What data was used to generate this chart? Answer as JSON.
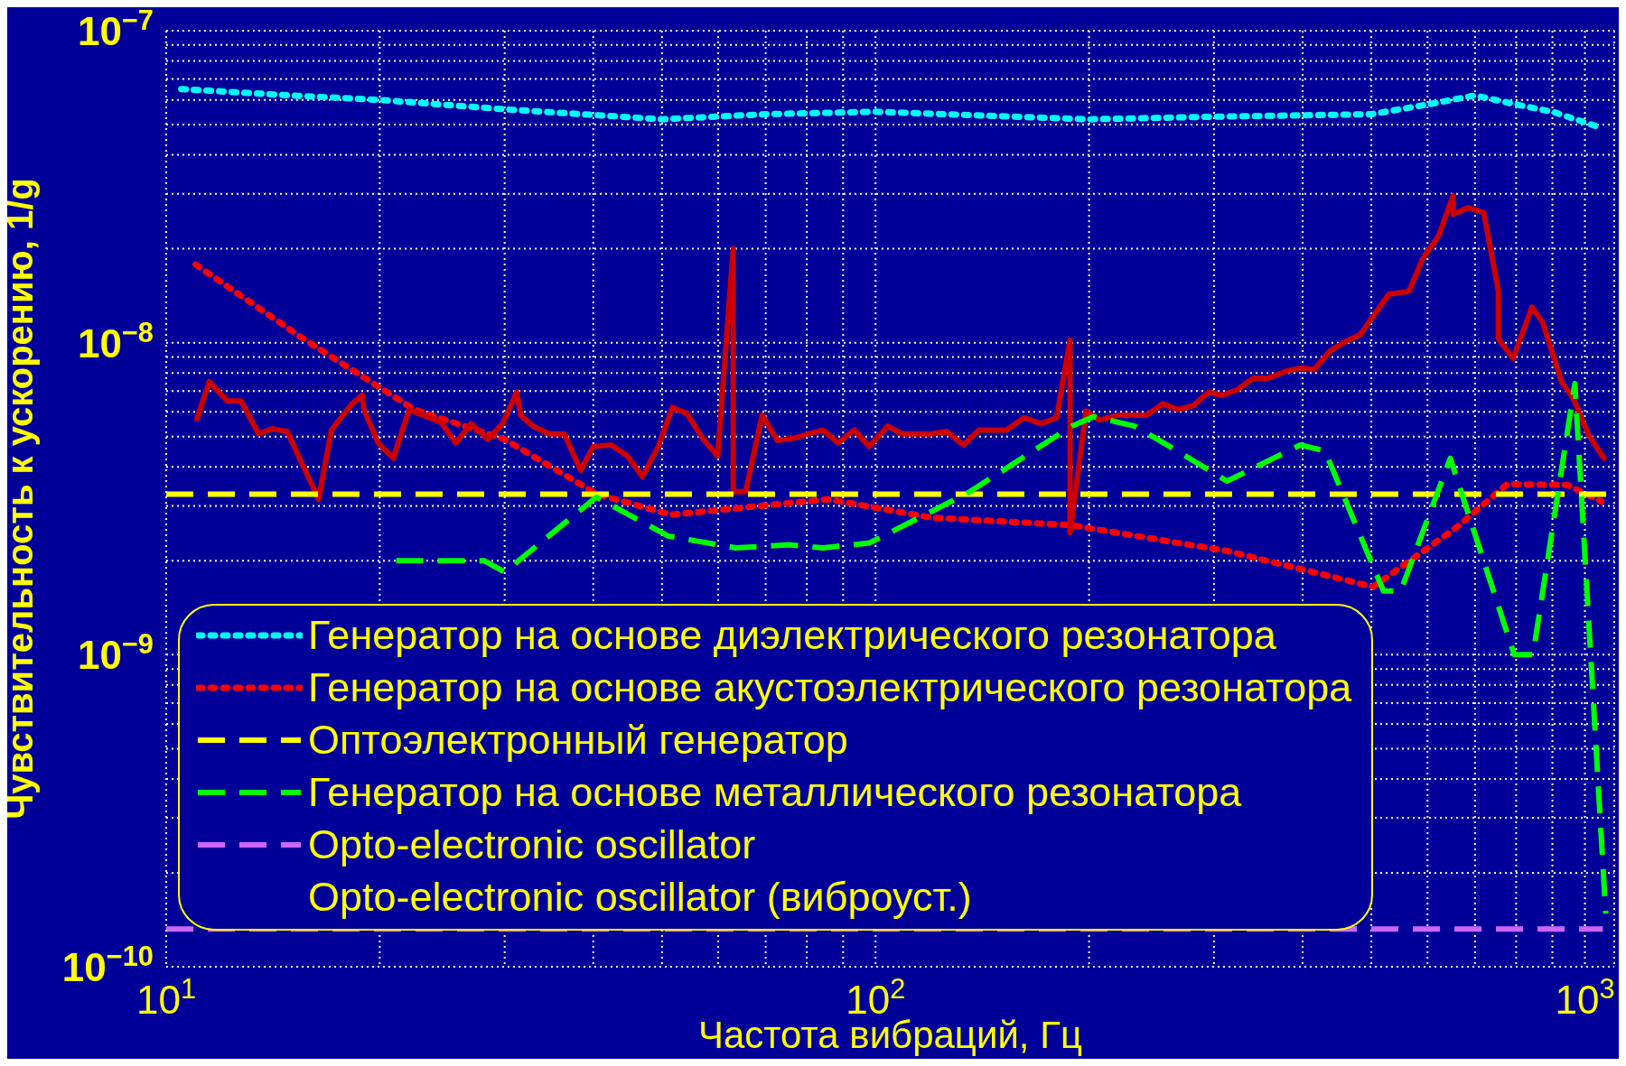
{
  "chart_data": {
    "type": "line",
    "xlabel": "Частота вибраций, Гц",
    "ylabel": "Чувствительность к ускорению, 1/g",
    "log": "xy",
    "grid": true,
    "legend": "bottom",
    "xlim": [
      10,
      1100
    ],
    "xticks": [
      {
        "value": 10,
        "label": "10$^{1}$"
      },
      {
        "value": 20,
        "label": null
      },
      {
        "value": 30,
        "label": null
      },
      {
        "value": 40,
        "label": null
      },
      {
        "value": 50,
        "label": null
      },
      {
        "value": 60,
        "label": null
      },
      {
        "value": 70,
        "label": null
      },
      {
        "value": 80,
        "label": null
      },
      {
        "value": 90,
        "label": null
      },
      {
        "value": 100,
        "label": "10$^{2}$"
      },
      {
        "value": 200,
        "label": null
      },
      {
        "value": 300,
        "label": null
      },
      {
        "value": 400,
        "label": null
      },
      {
        "value": 500,
        "label": null
      },
      {
        "value": 600,
        "label": null
      },
      {
        "value": 700,
        "label": null
      },
      {
        "value": 800,
        "label": null
      },
      {
        "value": 900,
        "label": null
      },
      {
        "value": 1000,
        "label": "10$^{3}$"
      }
    ],
    "ylim": [
      1e-10,
      1e-07
    ],
    "yticks": [
      {
        "value": 1e-10,
        "label": "10$^{−10}$"
      },
      {
        "value": 2e-10,
        "label": null
      },
      {
        "value": 3e-10,
        "label": null
      },
      {
        "value": 4e-10,
        "label": null
      },
      {
        "value": 5e-10,
        "label": null
      },
      {
        "value": 6e-10,
        "label": null
      },
      {
        "value": 7e-10,
        "label": null
      },
      {
        "value": 8e-10,
        "label": null
      },
      {
        "value": 9e-10,
        "label": null
      },
      {
        "value": 1e-09,
        "label": "10$^{−9}$"
      },
      {
        "value": 2e-09,
        "label": null
      },
      {
        "value": 3e-09,
        "label": null
      },
      {
        "value": 4e-09,
        "label": null
      },
      {
        "value": 5e-09,
        "label": null
      },
      {
        "value": 6e-09,
        "label": null
      },
      {
        "value": 7e-09,
        "label": null
      },
      {
        "value": 8e-09,
        "label": null
      },
      {
        "value": 9e-09,
        "label": null
      },
      {
        "value": 1e-08,
        "label": "10$^{−8}$"
      },
      {
        "value": 2e-08,
        "label": null
      },
      {
        "value": 3e-08,
        "label": null
      },
      {
        "value": 4e-08,
        "label": null
      },
      {
        "value": 5e-08,
        "label": null
      },
      {
        "value": 6e-08,
        "label": null
      },
      {
        "value": 7e-08,
        "label": null
      },
      {
        "value": 8e-08,
        "label": null
      },
      {
        "value": 9e-08,
        "label": null
      },
      {
        "value": 1e-07,
        "label": "10$^{−7}$"
      }
    ],
    "series": [
      {
        "name": "Генератор на основе диэлектрического резонатора",
        "color": "#00ffff",
        "line_style": "dotted",
        "x": [
          10.5,
          15,
          20,
          30,
          50,
          70,
          100,
          200,
          300,
          500,
          600,
          700,
          800,
          900,
          1050
        ],
        "values": [
          6.5e-08,
          6.2e-08,
          6e-08,
          5.6e-08,
          5.2e-08,
          5.4e-08,
          5.5e-08,
          5.2e-08,
          5.3e-08,
          5.4e-08,
          5.8e-08,
          6.2e-08,
          5.8e-08,
          5.5e-08,
          4.9e-08
        ]
      },
      {
        "name": "Генератор на основе акустоэлектрического резонатора",
        "color": "#ff0000",
        "line_style": "dotted",
        "x": [
          11,
          15.7,
          22.4,
          30,
          40.5,
          51.5,
          85.7,
          120,
          189,
          313,
          503,
          658,
          777,
          944,
          1055
        ],
        "values": [
          1.78e-08,
          1.02e-08,
          6.1e-09,
          4.9e-09,
          3.27e-09,
          2.81e-09,
          3.15e-09,
          2.75e-09,
          2.6e-09,
          2.15e-09,
          1.65e-09,
          2.55e-09,
          3.52e-09,
          3.5e-09,
          3.1e-09
        ]
      },
      {
        "name": null,
        "color": "#cc0000",
        "line_style": "solid",
        "x": [
          11.05,
          11.5,
          12.2,
          12.75,
          13.5,
          14.1,
          14.8,
          16.4,
          17.1,
          18.2,
          18.9,
          19.0,
          19.9,
          20.9,
          22.0,
          24.4,
          25.6,
          26.9,
          28.4,
          29.8,
          31.2,
          31.6,
          32.9,
          34.7,
          36.4,
          38.4,
          40.0,
          42.4,
          44.7,
          46.9,
          49.4,
          51.7,
          54.2,
          57.0,
          59.9,
          63.0,
          63.0,
          65.6,
          69.2,
          72.7,
          76.9,
          84.3,
          88.6,
          93.3,
          98.0,
          104,
          109,
          120,
          126,
          133,
          140,
          153,
          162,
          171,
          180,
          188,
          188,
          198,
          207,
          220,
          241,
          254,
          267,
          281,
          295,
          308,
          324,
          341,
          358,
          379,
          398,
          415,
          437,
          460,
          482,
          529,
          565,
          590,
          622,
          652,
          652,
          685,
          720,
          755,
          755,
          792,
          842,
          872,
          927,
          964,
          1013,
          1064
        ],
        "values": [
          5.7e-09,
          7.5e-09,
          6.5e-09,
          6.5e-09,
          5.1e-09,
          5.3e-09,
          5.2e-09,
          3.15e-09,
          5.25e-09,
          6.3e-09,
          6.8e-09,
          6.1e-09,
          4.77e-09,
          4.26e-09,
          6.1e-09,
          5.55e-09,
          4.77e-09,
          5.5e-09,
          4.9e-09,
          5.5e-09,
          6.95e-09,
          5.86e-09,
          5.4e-09,
          5.1e-09,
          5.1e-09,
          3.9e-09,
          4.65e-09,
          4.7e-09,
          4.33e-09,
          3.72e-09,
          4.65e-09,
          6.2e-09,
          5.93e-09,
          4.95e-09,
          4.33e-09,
          2e-08,
          3.33e-09,
          3.33e-09,
          5.86e-09,
          4.86e-09,
          4.95e-09,
          5.25e-09,
          4.77e-09,
          5.25e-09,
          4.65e-09,
          5.4e-09,
          5.1e-09,
          5.1e-09,
          5.2e-09,
          4.7e-09,
          5.25e-09,
          5.25e-09,
          5.75e-09,
          5.5e-09,
          5.75e-09,
          1.02e-08,
          2.46e-09,
          6.04e-09,
          5.65e-09,
          5.86e-09,
          5.86e-09,
          6.37e-09,
          6.1e-09,
          6.3e-09,
          6.95e-09,
          6.78e-09,
          7.08e-09,
          7.7e-09,
          7.7e-09,
          8.1e-09,
          8.3e-09,
          8.2e-09,
          9.4e-09,
          1.01e-08,
          1.06e-08,
          1.43e-08,
          1.46e-08,
          1.85e-08,
          2.2e-08,
          2.96e-08,
          2.58e-08,
          2.71e-08,
          2.61e-08,
          1.47e-08,
          1.03e-08,
          8.9e-09,
          1.3e-08,
          1.16e-08,
          7.5e-09,
          6.6e-09,
          5.04e-09,
          4.26e-09
        ]
      },
      {
        "name": "Оптоэлектронный генератор",
        "color": "#ffff00",
        "line_style": "dashed",
        "x": [
          10,
          1100
        ],
        "values": [
          3.27e-09,
          3.27e-09
        ]
      },
      {
        "name": "Генератор на основе металлического резонатора",
        "color": "#00ff00",
        "line_style": "dashed",
        "x": [
          21.1,
          28.1,
          30,
          40.4,
          51,
          63.5,
          75.5,
          84.4,
          98,
          135,
          189,
          203,
          232,
          255,
          313,
          397,
          430,
          520,
          550,
          646,
          795,
          845,
          968,
          1070
        ],
        "values": [
          2e-09,
          2e-09,
          1.84e-09,
          3.2e-09,
          2.4e-09,
          2.2e-09,
          2.25e-09,
          2.2e-09,
          2.28e-09,
          3.3e-09,
          5.4e-09,
          5.8e-09,
          5.4e-09,
          4.77e-09,
          3.6e-09,
          4.7e-09,
          4.5e-09,
          1.6e-09,
          1.6e-09,
          4.26e-09,
          1e-09,
          1e-09,
          7.4e-09,
          1.48e-10
        ]
      },
      {
        "name": "Opto-electronic oscillator",
        "color": "#cc66ff",
        "line_style": "dashed",
        "x": [
          10,
          1060
        ],
        "values": [
          1.32e-10,
          1.32e-10
        ]
      }
    ],
    "annotations": [
      "Opto-electronic oscillator (виброуст.)"
    ]
  }
}
